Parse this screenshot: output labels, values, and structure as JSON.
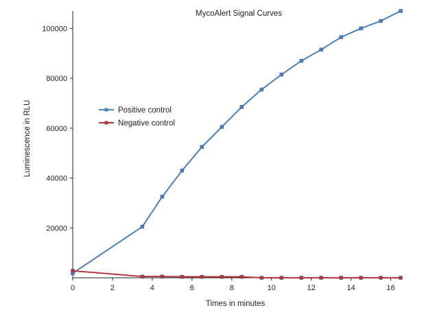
{
  "chart_data": {
    "type": "line",
    "title": "MycoAlert Signal Curves",
    "xlabel": "Times in minutes",
    "ylabel": "Luminescence in RLU",
    "xlim": [
      0,
      16.5
    ],
    "ylim": [
      0,
      107000
    ],
    "xticks": [
      0,
      2,
      4,
      6,
      8,
      10,
      12,
      14,
      16
    ],
    "yticks": [
      20000,
      40000,
      60000,
      80000,
      100000
    ],
    "grid": false,
    "legend_position": "center-left",
    "series": [
      {
        "name": "Positive control",
        "color": "#4a7fbf",
        "x": [
          0,
          3.5,
          4.5,
          5.5,
          6.5,
          7.5,
          8.5,
          9.5,
          10.5,
          11.5,
          12.5,
          13.5,
          14.5,
          15.5,
          16.5
        ],
        "y": [
          1800,
          20500,
          32500,
          43000,
          52500,
          60500,
          68500,
          75500,
          81500,
          87000,
          91500,
          96500,
          100000,
          103000,
          107000
        ]
      },
      {
        "name": "Negative control",
        "color": "#b5373c",
        "x": [
          0,
          3.5,
          4.5,
          5.5,
          6.5,
          7.5,
          8.5,
          9.5,
          10.5,
          11.5,
          12.5,
          13.5,
          14.5,
          15.5,
          16.5
        ],
        "y": [
          2800,
          500,
          500,
          400,
          400,
          400,
          400,
          0,
          0,
          0,
          0,
          0,
          0,
          0,
          0
        ]
      }
    ]
  }
}
